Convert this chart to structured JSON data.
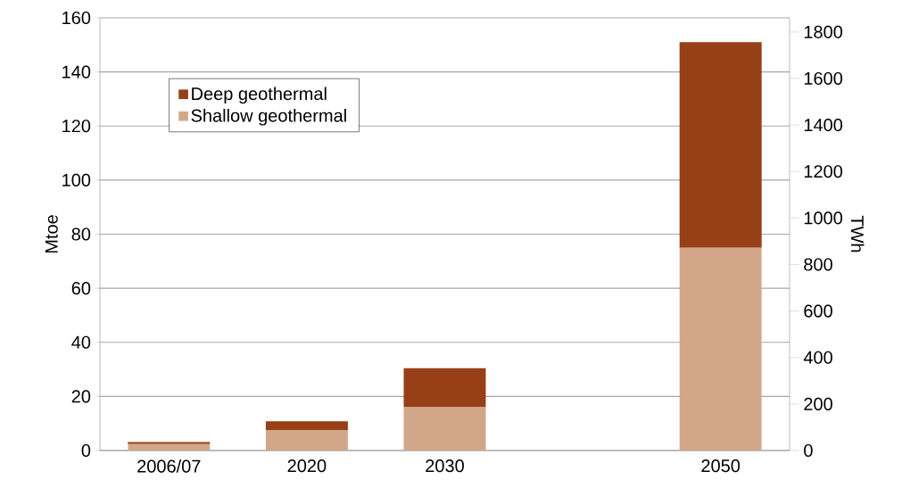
{
  "chart_data": {
    "type": "bar",
    "stacked": true,
    "categories": [
      "2006/07",
      "2020",
      "2030",
      null,
      "2050"
    ],
    "series": [
      {
        "name": "Shallow geothermal",
        "color": "#d2a789",
        "values": [
          2.4,
          7.4,
          16,
          null,
          75
        ]
      },
      {
        "name": "Deep geothermal",
        "color": "#973f17",
        "values": [
          0.7,
          3.4,
          14.4,
          null,
          76
        ]
      }
    ],
    "ylabel": "Mtoe",
    "y2label": "TWh",
    "ylim": [
      0,
      160
    ],
    "yticks": [
      0,
      20,
      40,
      60,
      80,
      100,
      120,
      140,
      160
    ],
    "y2lim": [
      0,
      1860.8
    ],
    "y2ticks": [
      0,
      200,
      400,
      600,
      800,
      1000,
      1200,
      1400,
      1600,
      1800
    ],
    "grid": "y",
    "legend": "top left"
  }
}
